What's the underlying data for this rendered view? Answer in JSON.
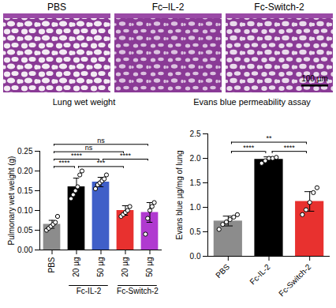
{
  "images": {
    "panels": [
      "PBS",
      "Fc–IL-2",
      "Fc-Switch-2"
    ],
    "scale_bar": "100 µm"
  },
  "chart_data": [
    {
      "type": "bar",
      "title": "Lung wet weight",
      "ylabel": "Pulmonary wet weight (g)",
      "categories": [
        "PBS",
        "20 µg",
        "50 µg",
        "20 µg",
        "50 µg"
      ],
      "group_labels": [
        {
          "label": "Fc-IL-2",
          "from": 1,
          "to": 2
        },
        {
          "label": "Fc-Switch-2",
          "from": 3,
          "to": 4
        }
      ],
      "values": [
        0.065,
        0.16,
        0.172,
        0.1,
        0.095
      ],
      "errors": [
        0.01,
        0.022,
        0.012,
        0.012,
        0.025
      ],
      "points": [
        [
          0.05,
          0.055,
          0.06,
          0.065,
          0.07,
          0.085
        ],
        [
          0.13,
          0.14,
          0.15,
          0.16,
          0.19,
          0.2
        ],
        [
          0.155,
          0.165,
          0.17,
          0.175,
          0.18,
          0.19
        ],
        [
          0.085,
          0.09,
          0.095,
          0.1,
          0.11
        ],
        [
          0.04,
          0.08,
          0.1,
          0.11,
          0.12
        ]
      ],
      "colors": [
        "#8c8c8c",
        "#000000",
        "#3f5fc8",
        "#e8312f",
        "#b03ad0"
      ],
      "ylim": [
        0,
        0.25
      ],
      "yticks": [
        {
          "value": 0,
          "label": "0.00"
        },
        {
          "value": 0.05,
          "label": "0.05"
        },
        {
          "value": 0.1,
          "label": "0.10"
        },
        {
          "value": 0.15,
          "label": "0.15"
        },
        {
          "value": 0.2,
          "label": "0.20"
        },
        {
          "value": 0.25,
          "label": "0.25"
        }
      ],
      "annotations": [
        {
          "from": 0,
          "to": 4,
          "label": "ns"
        },
        {
          "from": 0,
          "to": 3,
          "label": "ns"
        },
        {
          "from": 0,
          "to": 2,
          "label": "****"
        },
        {
          "from": 0,
          "to": 1,
          "label": "****"
        },
        {
          "from": 1,
          "to": 3,
          "label": "***"
        },
        {
          "from": 2,
          "to": 4,
          "label": "****"
        }
      ]
    },
    {
      "type": "bar",
      "title": "Evans blue permeability assay",
      "ylabel": "Evans blue µg/mg of lung",
      "categories": [
        "PBS",
        "Fc-IL-2",
        "Fc-Switch-2"
      ],
      "values": [
        0.72,
        1.98,
        1.12
      ],
      "errors": [
        0.1,
        0.05,
        0.2
      ],
      "points": [
        [
          0.55,
          0.65,
          0.7,
          0.75,
          0.8,
          0.85
        ],
        [
          1.9,
          1.95,
          2.0,
          2.0,
          2.02
        ],
        [
          0.85,
          0.95,
          1.1,
          1.3,
          1.4
        ]
      ],
      "colors": [
        "#8c8c8c",
        "#000000",
        "#e8312f"
      ],
      "ylim": [
        0,
        2.5
      ],
      "yticks": [
        {
          "value": 0,
          "label": "0.0"
        },
        {
          "value": 0.5,
          "label": "0.5"
        },
        {
          "value": 1,
          "label": "1.0"
        },
        {
          "value": 1.5,
          "label": "1.5"
        },
        {
          "value": 2,
          "label": "2.0"
        },
        {
          "value": 2.5,
          "label": "2.5"
        }
      ],
      "annotations": [
        {
          "from": 0,
          "to": 2,
          "label": "**"
        },
        {
          "from": 0,
          "to": 1,
          "label": "****"
        },
        {
          "from": 1,
          "to": 2,
          "label": "****"
        }
      ]
    }
  ]
}
